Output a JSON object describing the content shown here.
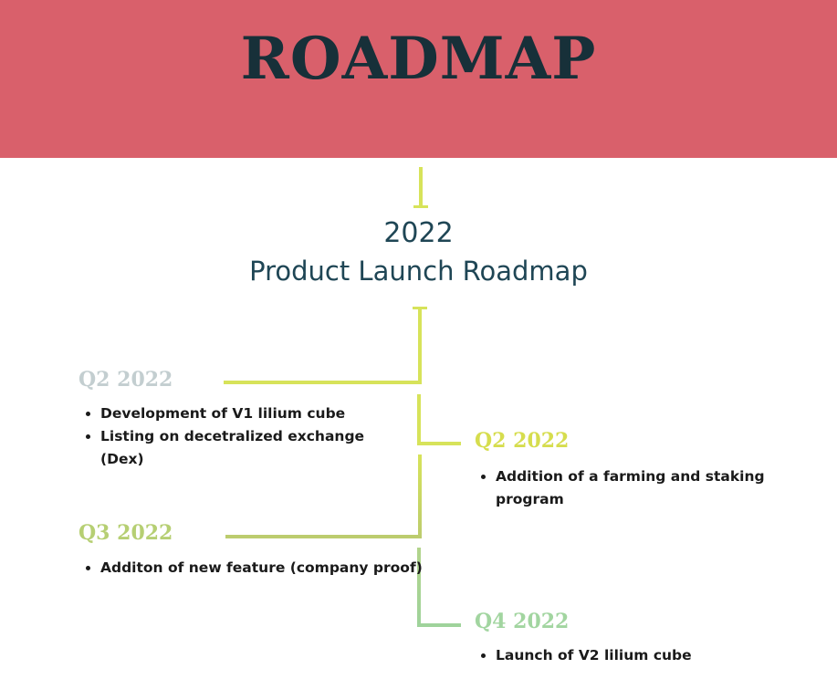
{
  "header": {
    "title": "ROADMAP"
  },
  "intro": {
    "year": "2022",
    "subtitle": "Product Launch Roadmap"
  },
  "milestones": [
    {
      "label": "Q2 2022",
      "items": [
        "Development of V1 lilium cube",
        "Listing on decetralized exchange (Dex)"
      ]
    },
    {
      "label": "Q2 2022",
      "items": [
        "Addition of a farming and staking program"
      ]
    },
    {
      "label": "Q3 2022",
      "items": [
        "Additon of new feature (company proof)"
      ]
    },
    {
      "label": "Q4 2022",
      "items": [
        "Launch of V2 lilium cube"
      ]
    }
  ],
  "colors": {
    "banner": "#d9606b",
    "title": "#173039",
    "heading": "#1f4655",
    "line_yellow": "#d7e35a",
    "line_olive": "#bccc6e",
    "line_green": "#9fd39b",
    "label_gray": "#c3ced0",
    "label_yellow": "#d6dd4e",
    "label_olive": "#b6cf73",
    "label_green": "#a2d5a0"
  }
}
